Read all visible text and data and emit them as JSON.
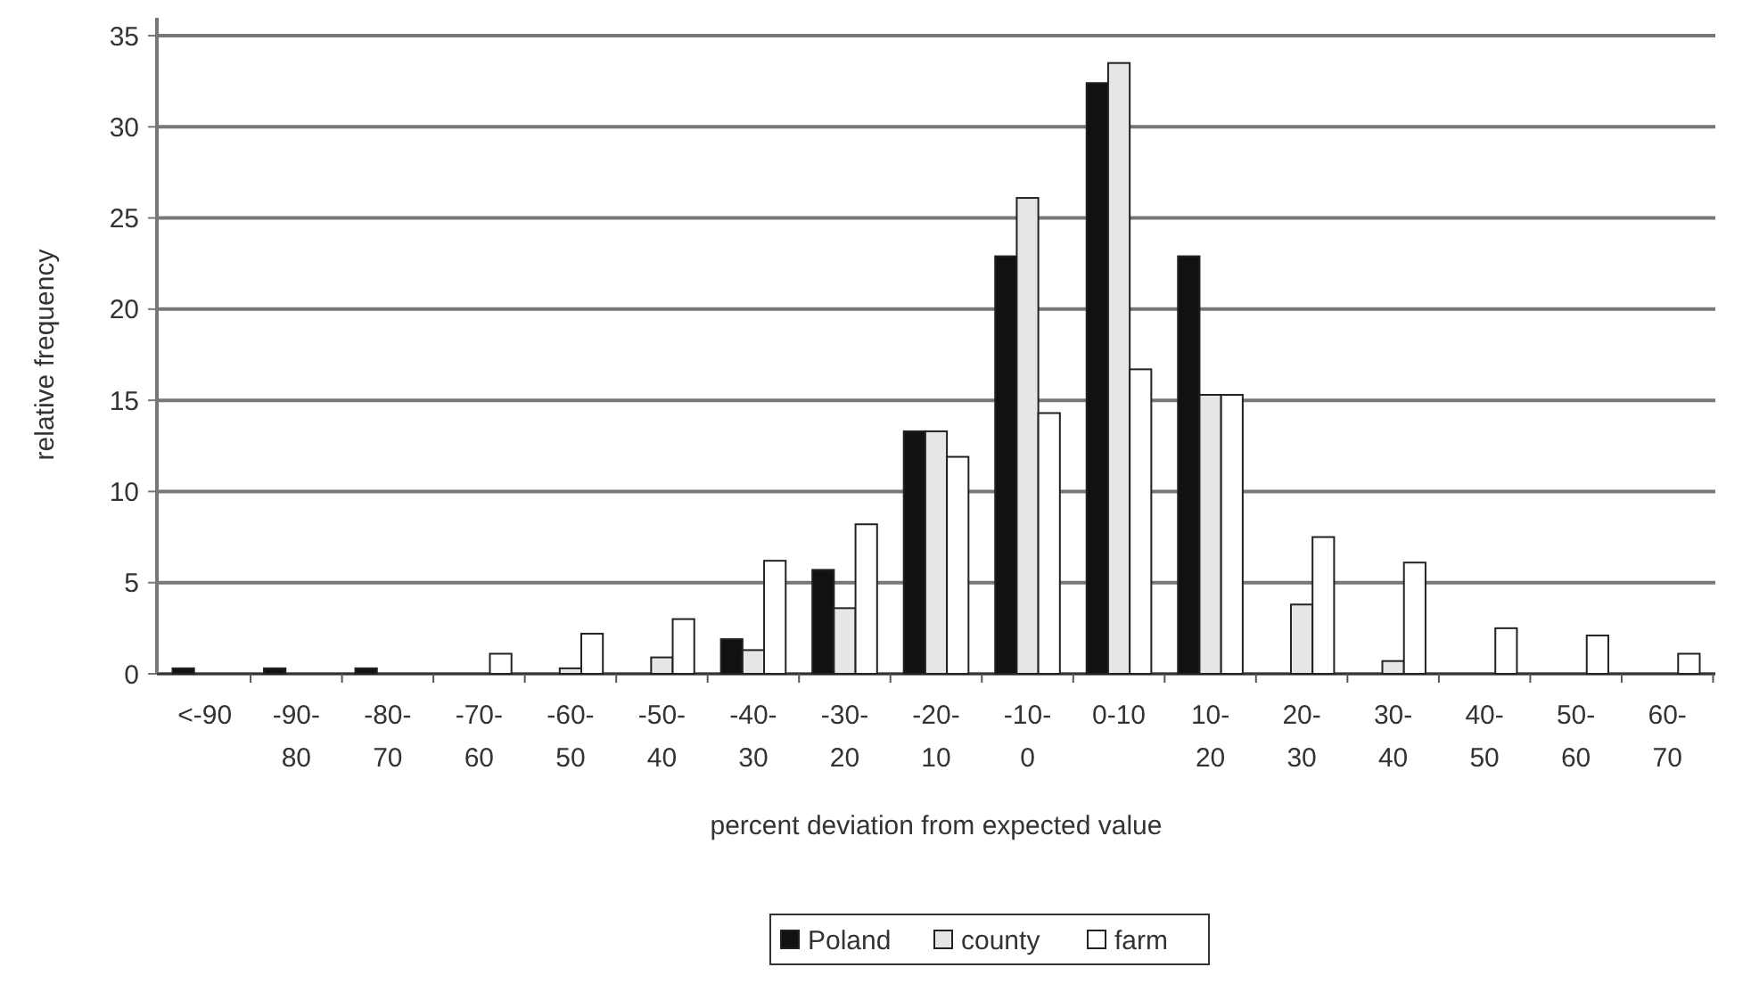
{
  "chart_data": {
    "type": "bar",
    "xlabel": "percent deviation from expected value",
    "ylabel": "relative frequency",
    "categories": [
      "<-90",
      "-90-80",
      "-80-70",
      "-70-60",
      "-60-50",
      "-50-40",
      "-40-30",
      "-30-20",
      "-20-10",
      "-10-0",
      "0-10",
      "10-20",
      "20-30",
      "30-40",
      "40-50",
      "50-60",
      "60-70"
    ],
    "series": [
      {
        "name": "Poland",
        "color": "#111111",
        "values": [
          0.3,
          0.3,
          0.3,
          0,
          0,
          0,
          1.9,
          5.7,
          13.3,
          22.9,
          32.4,
          22.9,
          0,
          0,
          0,
          0,
          0
        ]
      },
      {
        "name": "county",
        "color": "#e6e6e6",
        "values": [
          0,
          0,
          0,
          0,
          0.3,
          0.9,
          1.3,
          3.6,
          13.3,
          26.1,
          33.5,
          15.3,
          3.8,
          0.7,
          0,
          0,
          0
        ]
      },
      {
        "name": "farm",
        "color": "#ffffff",
        "values": [
          0,
          0,
          0,
          1.1,
          2.2,
          3.0,
          6.2,
          8.2,
          11.9,
          14.3,
          16.7,
          15.3,
          7.5,
          6.1,
          2.5,
          2.1,
          1.1
        ]
      }
    ],
    "ylim": [
      0,
      35
    ],
    "yticks": [
      0,
      5,
      10,
      15,
      20,
      25,
      30,
      35
    ],
    "grid": "y",
    "legend": "bottom"
  }
}
